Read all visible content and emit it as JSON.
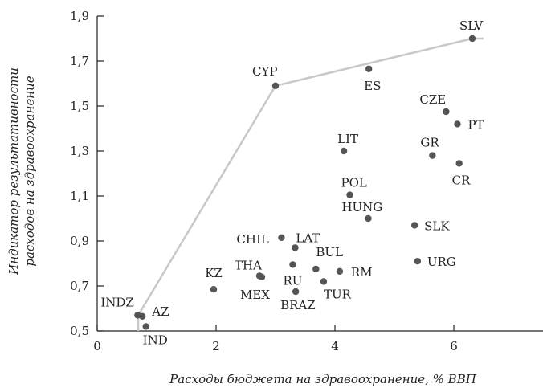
{
  "chart_data": {
    "type": "scatter",
    "xlabel": "Расходы бюджета на здравоохранение, % ВВП",
    "ylabel_line1": "Индикатор результативности",
    "ylabel_line2": "расходов на здравоохранение",
    "xlim": [
      0,
      7.5
    ],
    "ylim": [
      0.5,
      1.9
    ],
    "xticks": [
      0,
      2,
      4,
      6
    ],
    "xtick_labels": [
      "0",
      "2",
      "4",
      "6"
    ],
    "yticks": [
      0.5,
      0.7,
      0.9,
      1.1,
      1.3,
      1.5,
      1.7,
      1.9
    ],
    "ytick_labels": [
      "0,5",
      "0,7",
      "0,9",
      "1,1",
      "1,3",
      "1,5",
      "1,7",
      "1,9"
    ],
    "grid": false,
    "points": [
      {
        "label": "INDZ",
        "x": 0.68,
        "y": 0.57
      },
      {
        "label": "AZ",
        "x": 0.76,
        "y": 0.565
      },
      {
        "label": "IND",
        "x": 0.82,
        "y": 0.52
      },
      {
        "label": "KZ",
        "x": 1.96,
        "y": 0.685
      },
      {
        "label": "THA",
        "x": 2.73,
        "y": 0.745
      },
      {
        "label": "MEX",
        "x": 2.77,
        "y": 0.74
      },
      {
        "label": "CHIL",
        "x": 3.1,
        "y": 0.915
      },
      {
        "label": "LAT",
        "x": 3.33,
        "y": 0.87
      },
      {
        "label": "RU",
        "x": 3.29,
        "y": 0.795
      },
      {
        "label": "BRAZ",
        "x": 3.34,
        "y": 0.675
      },
      {
        "label": "BUL",
        "x": 3.68,
        "y": 0.775
      },
      {
        "label": "TUR",
        "x": 3.81,
        "y": 0.72
      },
      {
        "label": "RM",
        "x": 4.08,
        "y": 0.765
      },
      {
        "label": "CYP",
        "x": 3.0,
        "y": 1.59
      },
      {
        "label": "ES",
        "x": 4.57,
        "y": 1.665
      },
      {
        "label": "LIT",
        "x": 4.15,
        "y": 1.3
      },
      {
        "label": "POL",
        "x": 4.25,
        "y": 1.105
      },
      {
        "label": "HUNG",
        "x": 4.56,
        "y": 1.0
      },
      {
        "label": "SLK",
        "x": 5.34,
        "y": 0.97
      },
      {
        "label": "URG",
        "x": 5.39,
        "y": 0.81
      },
      {
        "label": "CZE",
        "x": 5.87,
        "y": 1.475
      },
      {
        "label": "PT",
        "x": 6.06,
        "y": 1.42
      },
      {
        "label": "GR",
        "x": 5.64,
        "y": 1.28
      },
      {
        "label": "CR",
        "x": 6.09,
        "y": 1.245
      },
      {
        "label": "SLV",
        "x": 6.31,
        "y": 1.8
      }
    ],
    "frontier": [
      {
        "x": 0.69,
        "y": 0.5
      },
      {
        "x": 0.69,
        "y": 0.57
      },
      {
        "x": 3.0,
        "y": 1.59
      },
      {
        "x": 6.31,
        "y": 1.8
      },
      {
        "x": 6.5,
        "y": 1.8
      }
    ]
  }
}
